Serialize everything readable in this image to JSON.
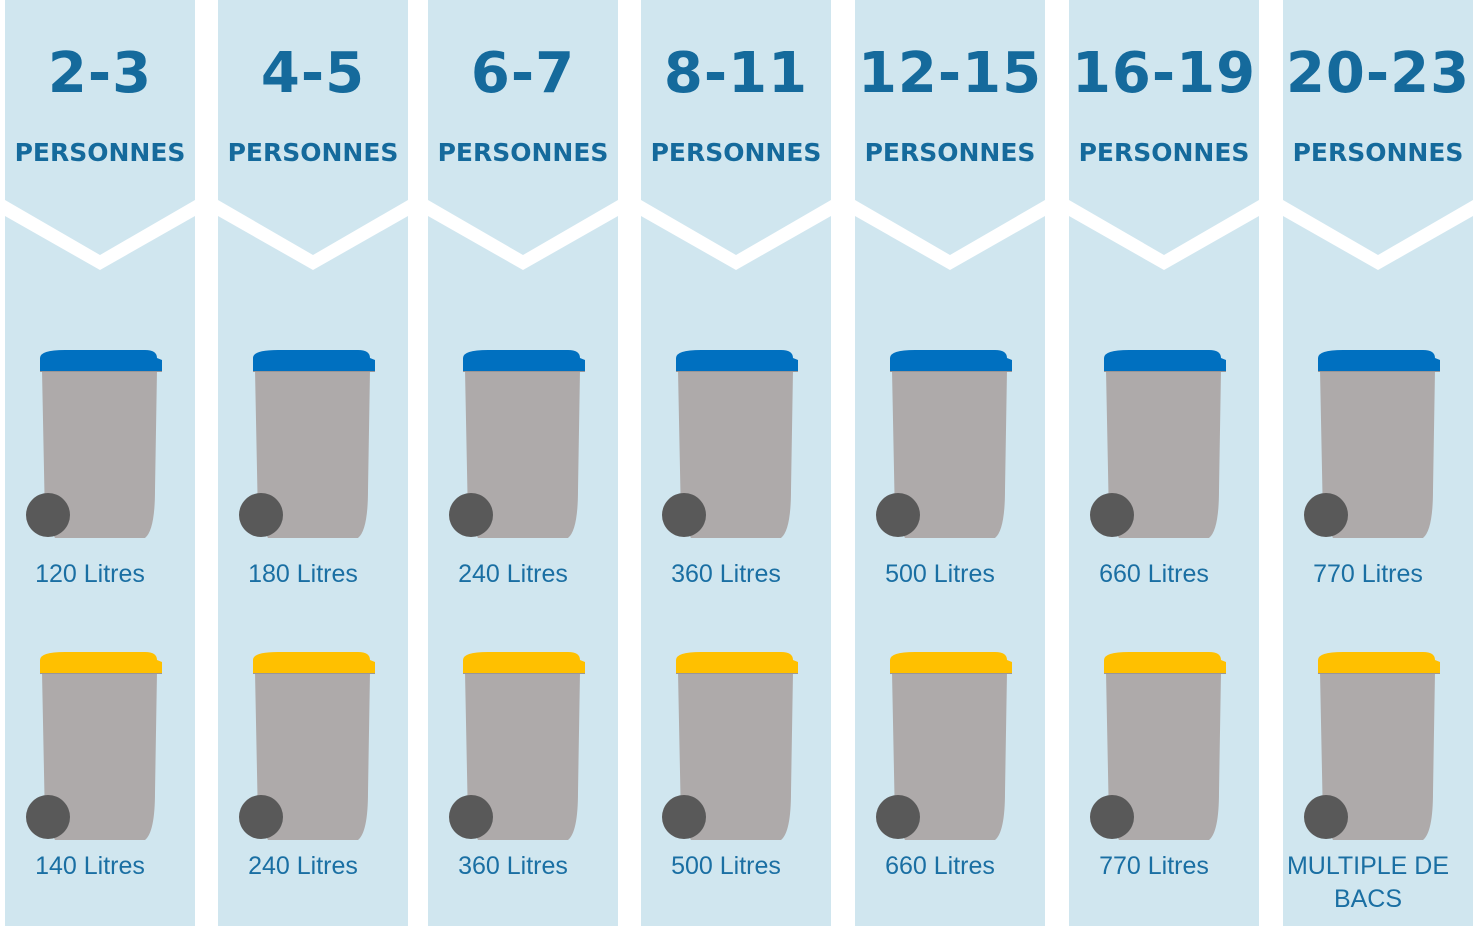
{
  "columns": [
    {
      "range": "2-3",
      "unit": "PERSONNES",
      "blue_bin": "120 Litres",
      "yellow_bin": "140 Litres"
    },
    {
      "range": "4-5",
      "unit": "PERSONNES",
      "blue_bin": "180 Litres",
      "yellow_bin": "240 Litres"
    },
    {
      "range": "6-7",
      "unit": "PERSONNES",
      "blue_bin": "240 Litres",
      "yellow_bin": "360 Litres"
    },
    {
      "range": "8-11",
      "unit": "PERSONNES",
      "blue_bin": "360 Litres",
      "yellow_bin": "500 Litres"
    },
    {
      "range": "12-15",
      "unit": "PERSONNES",
      "blue_bin": "500 Litres",
      "yellow_bin": "660 Litres"
    },
    {
      "range": "16-19",
      "unit": "PERSONNES",
      "blue_bin": "660 Litres",
      "yellow_bin": "770 Litres"
    },
    {
      "range": "20-23",
      "unit": "PERSONNES",
      "blue_bin": "770 Litres",
      "yellow_bin": "MULTIPLE DE BACS"
    }
  ]
}
